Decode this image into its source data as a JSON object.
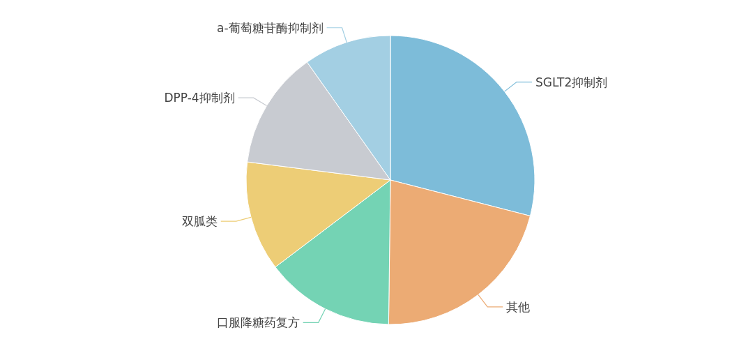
{
  "chart_data": {
    "type": "pie",
    "categories": [
      "SGLT2抑制剂",
      "其他",
      "口服降糖药复方",
      "双胍类",
      "DPP-4抑制剂",
      "a-葡萄糖苷酶抑制剂"
    ],
    "values": [
      29.0,
      21.2,
      14.5,
      12.3,
      13.2,
      9.8
    ],
    "colors": [
      "#7dbcd9",
      "#ecab74",
      "#74d3b4",
      "#edcd76",
      "#c8cbd1",
      "#a3cfe3"
    ]
  }
}
